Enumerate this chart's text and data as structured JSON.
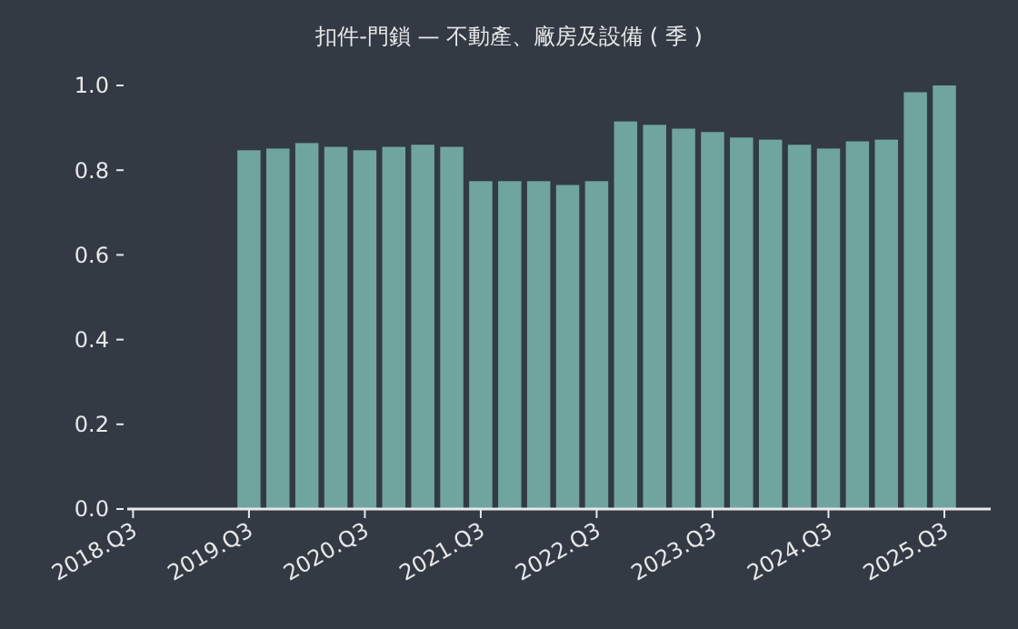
{
  "chart_data": {
    "type": "bar",
    "title": "扣件-門鎖 — 不動產、廠房及設備 ( 季 )",
    "categories": [
      "2018.Q3",
      null,
      null,
      null,
      "2019.Q3",
      null,
      null,
      null,
      "2020.Q3",
      null,
      null,
      null,
      "2021.Q3",
      null,
      null,
      null,
      "2022.Q3",
      null,
      null,
      null,
      "2023.Q3",
      null,
      null,
      null,
      "2024.Q3",
      null,
      null,
      null,
      "2025.Q3"
    ],
    "values": [
      null,
      null,
      null,
      null,
      0.847,
      0.851,
      0.864,
      0.855,
      0.847,
      0.855,
      0.86,
      0.855,
      0.774,
      0.774,
      0.774,
      0.765,
      0.774,
      0.915,
      0.907,
      0.898,
      0.89,
      0.877,
      0.872,
      0.86,
      0.851,
      0.868,
      0.872,
      0.984,
      1.0
    ],
    "color": "#6fa59e",
    "ylim": [
      0,
      1
    ],
    "yticks": [
      {
        "value": 0,
        "label": "0.0"
      },
      {
        "value": 0.2,
        "label": "0.2"
      },
      {
        "value": 0.4,
        "label": "0.4"
      },
      {
        "value": 0.6,
        "label": "0.6"
      },
      {
        "value": 0.8,
        "label": "0.8"
      },
      {
        "value": 1,
        "label": "1.0"
      }
    ],
    "grid": false
  }
}
